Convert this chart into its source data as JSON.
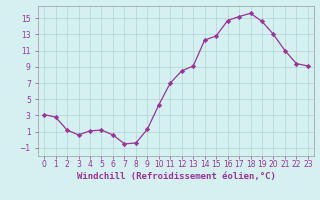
{
  "x": [
    0,
    1,
    2,
    3,
    4,
    5,
    6,
    7,
    8,
    9,
    10,
    11,
    12,
    13,
    14,
    15,
    16,
    17,
    18,
    19,
    20,
    21,
    22,
    23
  ],
  "y": [
    3.1,
    2.8,
    1.2,
    0.6,
    1.1,
    1.2,
    0.6,
    -0.5,
    -0.4,
    1.3,
    4.3,
    7.0,
    8.5,
    9.1,
    12.3,
    12.8,
    14.7,
    15.2,
    15.6,
    14.6,
    13.0,
    11.0,
    9.4,
    9.1
  ],
  "line_color": "#993399",
  "marker": "D",
  "marker_size": 2.2,
  "bg_color": "#d4f0f0",
  "grid_color": "#b8d8d8",
  "xlabel": "Windchill (Refroidissement éolien,°C)",
  "xlabel_fontsize": 6.5,
  "yticks": [
    -1,
    1,
    3,
    5,
    7,
    9,
    11,
    13,
    15
  ],
  "xtick_labels": [
    "0",
    "1",
    "2",
    "3",
    "4",
    "5",
    "6",
    "7",
    "8",
    "9",
    "10",
    "11",
    "12",
    "13",
    "14",
    "15",
    "16",
    "17",
    "18",
    "19",
    "20",
    "21",
    "22",
    "23"
  ],
  "ylim": [
    -2.0,
    16.5
  ],
  "xlim": [
    -0.5,
    23.5
  ],
  "tick_fontsize": 5.5,
  "spine_color": "#999999",
  "tick_color": "#993399",
  "label_color": "#993399"
}
